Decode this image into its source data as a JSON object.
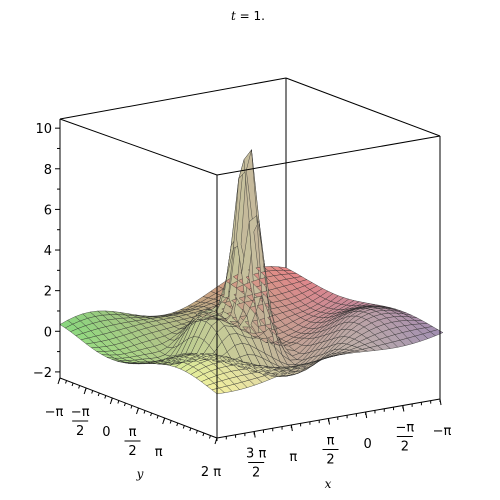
{
  "chart_data": {
    "type": "surface3d",
    "title": {
      "var": "t",
      "rest": " = 1."
    },
    "xlabel": "x",
    "ylabel": "y",
    "xlim": [
      -3.14159,
      6.28318
    ],
    "ylim": [
      -3.14159,
      6.28318
    ],
    "zlim": [
      -2.3,
      10.5
    ],
    "z_ticks": [
      {
        "value": -2,
        "label": "−2"
      },
      {
        "value": 0,
        "label": "0"
      },
      {
        "value": 2,
        "label": "2"
      },
      {
        "value": 4,
        "label": "4"
      },
      {
        "value": 6,
        "label": "6"
      },
      {
        "value": 8,
        "label": "8"
      },
      {
        "value": 10,
        "label": "10"
      }
    ],
    "y_ticks": [
      {
        "value": -3.14159,
        "num": "−π",
        "den": ""
      },
      {
        "value": -1.5708,
        "num": "−π",
        "den": "2"
      },
      {
        "value": 0,
        "num": "0",
        "den": ""
      },
      {
        "value": 1.5708,
        "num": "π",
        "den": "2"
      },
      {
        "value": 3.14159,
        "num": "π",
        "den": ""
      },
      {
        "value": 6.28318,
        "num": "2 π",
        "den": ""
      }
    ],
    "x_ticks": [
      {
        "value": 4.71239,
        "num": "3 π",
        "den": "2"
      },
      {
        "value": 3.14159,
        "num": "π",
        "den": ""
      },
      {
        "value": 1.5708,
        "num": "π",
        "den": "2"
      },
      {
        "value": 0,
        "num": "0",
        "den": ""
      },
      {
        "value": -1.5708,
        "num": "−π",
        "den": "2"
      },
      {
        "value": -3.14159,
        "num": "−π",
        "den": ""
      }
    ],
    "surface": {
      "peak_value": 9.3,
      "grid_lines": true,
      "color_scheme": "pastel gradient (red, yellow, green, purple)"
    },
    "box": true,
    "grid": false,
    "legend": "none"
  }
}
